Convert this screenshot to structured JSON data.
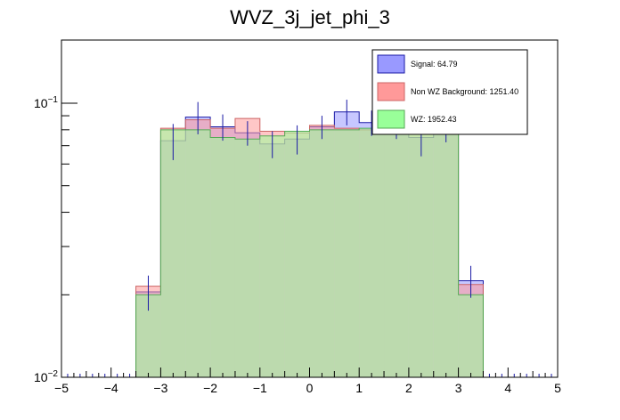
{
  "chart_data": {
    "type": "histogram",
    "title": "WVZ_3j_jet_phi_3",
    "xlabel": "",
    "ylabel": "",
    "x_range": [
      -5,
      5
    ],
    "y_range": [
      0.01,
      0.17
    ],
    "y_scale": "log",
    "x_ticks": [
      -5,
      -4,
      -3,
      -2,
      -1,
      0,
      1,
      2,
      3,
      4,
      5
    ],
    "x_tick_labels": [
      "−5",
      "−4",
      "−3",
      "−2",
      "−1",
      "0",
      "1",
      "2",
      "3",
      "4",
      "5"
    ],
    "y_ticks": [
      0.01,
      0.1
    ],
    "y_tick_labels": [
      {
        "base": "10",
        "exp": "−2"
      },
      {
        "base": "10",
        "exp": "−1"
      }
    ],
    "bin_edges": [
      -3.5,
      -3.0,
      -2.5,
      -2.0,
      -1.5,
      -1.0,
      -0.5,
      0.0,
      0.5,
      1.0,
      1.5,
      2.0,
      2.5,
      3.0,
      3.5
    ],
    "legend_position": "top-right",
    "series": [
      {
        "name": "Signal: 64.79",
        "fill": "#9999ff",
        "line": "#1a1aa6",
        "values": [
          0.0205,
          0.073,
          0.089,
          0.082,
          0.078,
          0.071,
          0.074,
          0.082,
          0.093,
          0.085,
          0.083,
          0.075,
          0.083,
          0.0225
        ],
        "errors": [
          0.003,
          0.011,
          0.012,
          0.009,
          0.008,
          0.008,
          0.009,
          0.008,
          0.01,
          0.009,
          0.009,
          0.011,
          0.011,
          0.003
        ]
      },
      {
        "name": "Non WZ Background: 1251.40",
        "fill": "#ff9999",
        "line": "#cc6666",
        "values": [
          0.0215,
          0.081,
          0.087,
          0.081,
          0.088,
          0.079,
          0.078,
          0.083,
          0.081,
          0.08,
          0.087,
          0.082,
          0.081,
          0.0218
        ],
        "errors": [
          0,
          0,
          0,
          0,
          0,
          0,
          0,
          0,
          0,
          0,
          0,
          0,
          0,
          0
        ]
      },
      {
        "name": "WZ: 1952.43",
        "fill": "#99ff99",
        "line": "#55aa55",
        "values": [
          0.02,
          0.08,
          0.08,
          0.075,
          0.074,
          0.076,
          0.079,
          0.08,
          0.08,
          0.081,
          0.081,
          0.08,
          0.082,
          0.02
        ],
        "errors": [
          0,
          0,
          0,
          0,
          0,
          0,
          0,
          0,
          0,
          0,
          0,
          0,
          0,
          0
        ]
      }
    ]
  }
}
